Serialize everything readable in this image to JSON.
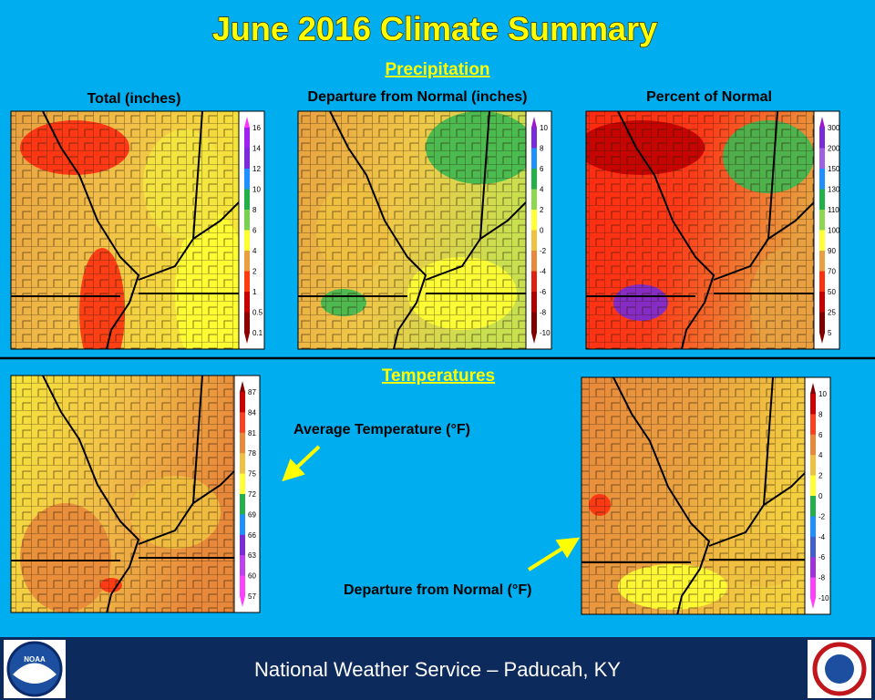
{
  "title": "June 2016 Climate Summary",
  "precipitation": {
    "heading": "Precipitation",
    "maps": [
      {
        "title": "Total (inches)",
        "legend": [
          "16",
          "14",
          "12",
          "10",
          "8",
          "6",
          "4",
          "2",
          "1",
          "0.5",
          "0.1"
        ]
      },
      {
        "title": "Departure from Normal (inches)",
        "legend": [
          "10",
          "8",
          "6",
          "4",
          "2",
          "0",
          "-2",
          "-4",
          "-6",
          "-8",
          "-10"
        ]
      },
      {
        "title": "Percent of Normal",
        "legend": [
          "300",
          "200",
          "150",
          "130",
          "110",
          "100",
          "90",
          "70",
          "50",
          "25",
          "5"
        ]
      }
    ]
  },
  "temperatures": {
    "heading": "Temperatures",
    "maps": [
      {
        "title": "Average Temperature (°F)",
        "legend": [
          "87",
          "84",
          "81",
          "78",
          "75",
          "72",
          "69",
          "66",
          "63",
          "60",
          "57"
        ]
      },
      {
        "title": "Departure from Normal (°F)",
        "legend": [
          "10",
          "8",
          "6",
          "4",
          "2",
          "0",
          "-2",
          "-4",
          "-6",
          "-8",
          "-10"
        ]
      }
    ]
  },
  "footer": "National Weather Service – Paducah, KY",
  "logo": "NOAA"
}
